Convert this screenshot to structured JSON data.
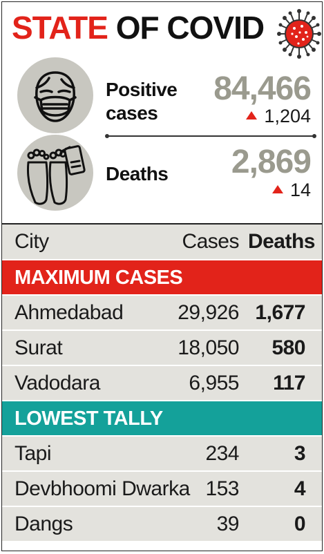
{
  "title": {
    "part1": "STATE",
    "part2": "OF COVID"
  },
  "summary": {
    "positive": {
      "label_line1": "Positive",
      "label_line2": "cases",
      "value": "84,466",
      "change": "1,204"
    },
    "deaths": {
      "label": "Deaths",
      "value": "2,869",
      "change": "14"
    }
  },
  "icons": {
    "virus": "virus-icon",
    "mask": "face-mask-icon",
    "feet": "toe-tag-feet-icon"
  },
  "colors": {
    "red": "#e2231a",
    "teal": "#14a19a",
    "row_bg": "#e3e2dd",
    "gray_number": "#9a9a8e",
    "icon_circle": "#c8c7c0"
  },
  "table": {
    "headers": {
      "city": "City",
      "cases": "Cases",
      "deaths": "Deaths"
    },
    "max_section": {
      "title": "MAXIMUM CASES",
      "rows": [
        {
          "city": "Ahmedabad",
          "cases": "29,926",
          "deaths": "1,677"
        },
        {
          "city": "Surat",
          "cases": "18,050",
          "deaths": "580"
        },
        {
          "city": "Vadodara",
          "cases": "6,955",
          "deaths": "117"
        }
      ]
    },
    "low_section": {
      "title": "LOWEST TALLY",
      "rows": [
        {
          "city": "Tapi",
          "cases": "234",
          "deaths": "3"
        },
        {
          "city": "Devbhoomi Dwarka",
          "cases": "153",
          "deaths": "4"
        },
        {
          "city": "Dangs",
          "cases": "39",
          "deaths": "0"
        }
      ]
    }
  }
}
